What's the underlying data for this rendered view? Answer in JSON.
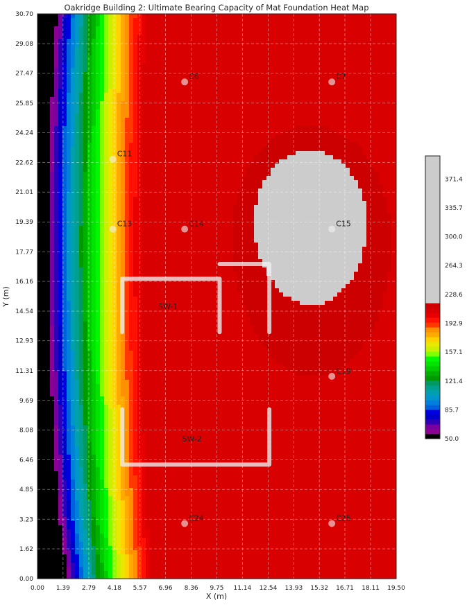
{
  "chart_data": {
    "type": "heatmap",
    "title": "Oakridge Building 2: Ultimate Bearing Capacity of Mat Foundation Heat Map",
    "xlabel": "X (m)",
    "ylabel": "Y (m)",
    "xlim": [
      0,
      19.5
    ],
    "ylim": [
      0,
      30.7
    ],
    "xticks": [
      "0.00",
      "1.39",
      "2.79",
      "4.18",
      "5.57",
      "6.96",
      "8.36",
      "9.75",
      "11.14",
      "12.54",
      "13.93",
      "15.32",
      "16.71",
      "18.11",
      "19.50"
    ],
    "yticks": [
      "0.00",
      "1.62",
      "3.23",
      "4.85",
      "6.46",
      "8.08",
      "9.69",
      "11.31",
      "12.93",
      "14.54",
      "16.16",
      "17.77",
      "19.39",
      "21.01",
      "22.62",
      "24.24",
      "25.85",
      "27.47",
      "29.08",
      "30.70"
    ],
    "grid": true,
    "colorbar": {
      "ticks": [
        "50.0",
        "85.7",
        "121.4",
        "157.1",
        "192.9",
        "228.6",
        "264.3",
        "300.0",
        "335.7",
        "371.4"
      ],
      "range": [
        50.0,
        400.0
      ],
      "levels": [
        {
          "from": 50.0,
          "to": 56.0,
          "color": "#000000"
        },
        {
          "from": 56.0,
          "to": 62.0,
          "color": "#8c0094"
        },
        {
          "from": 62.0,
          "to": 68.0,
          "color": "#7800a0"
        },
        {
          "from": 68.0,
          "to": 74.0,
          "color": "#3000b8"
        },
        {
          "from": 74.0,
          "to": 80.0,
          "color": "#0000c8"
        },
        {
          "from": 80.0,
          "to": 86.0,
          "color": "#0000e0"
        },
        {
          "from": 86.0,
          "to": 92.0,
          "color": "#0060dd"
        },
        {
          "from": 92.0,
          "to": 98.0,
          "color": "#0080dd"
        },
        {
          "from": 98.0,
          "to": 104.0,
          "color": "#0095cc"
        },
        {
          "from": 104.0,
          "to": 110.0,
          "color": "#00a0b0"
        },
        {
          "from": 110.0,
          "to": 116.0,
          "color": "#00a090"
        },
        {
          "from": 116.0,
          "to": 122.0,
          "color": "#009a60"
        },
        {
          "from": 122.0,
          "to": 128.0,
          "color": "#009900"
        },
        {
          "from": 128.0,
          "to": 134.0,
          "color": "#00b000"
        },
        {
          "from": 134.0,
          "to": 140.0,
          "color": "#00cc00"
        },
        {
          "from": 140.0,
          "to": 146.0,
          "color": "#00e400"
        },
        {
          "from": 146.0,
          "to": 152.0,
          "color": "#00f800"
        },
        {
          "from": 152.0,
          "to": 158.0,
          "color": "#80ff00"
        },
        {
          "from": 158.0,
          "to": 164.0,
          "color": "#c8f000"
        },
        {
          "from": 164.0,
          "to": 170.0,
          "color": "#e8e800"
        },
        {
          "from": 170.0,
          "to": 176.0,
          "color": "#ffd200"
        },
        {
          "from": 176.0,
          "to": 182.0,
          "color": "#ffaa00"
        },
        {
          "from": 182.0,
          "to": 188.0,
          "color": "#ff9000"
        },
        {
          "from": 188.0,
          "to": 194.0,
          "color": "#ff3800"
        },
        {
          "from": 194.0,
          "to": 200.0,
          "color": "#ff1000"
        },
        {
          "from": 200.0,
          "to": 206.0,
          "color": "#e80000"
        },
        {
          "from": 206.0,
          "to": 212.0,
          "color": "#d80000"
        },
        {
          "from": 212.0,
          "to": 218.0,
          "color": "#cc0000"
        },
        {
          "from": 218.0,
          "to": 400.0,
          "color": "#cccccc"
        }
      ]
    },
    "points": [
      {
        "label": "C6",
        "x": 8.0,
        "y": 27.0
      },
      {
        "label": "C7",
        "x": 16.0,
        "y": 27.0
      },
      {
        "label": "C11",
        "x": 4.1,
        "y": 22.8
      },
      {
        "label": "C13",
        "x": 4.1,
        "y": 19.0
      },
      {
        "label": "C14",
        "x": 8.0,
        "y": 19.0
      },
      {
        "label": "C15",
        "x": 16.0,
        "y": 19.0
      },
      {
        "label": "C19",
        "x": 16.0,
        "y": 11.0
      },
      {
        "label": "C24",
        "x": 8.0,
        "y": 3.0
      },
      {
        "label": "C25",
        "x": 16.0,
        "y": 3.0
      }
    ],
    "walls": [
      {
        "label": "SW-1",
        "label_x": 7.1,
        "label_y": 14.8,
        "segments": [
          [
            [
              4.6,
              13.4
            ],
            [
              4.6,
              16.3
            ],
            [
              9.9,
              16.3
            ],
            [
              9.9,
              13.4
            ]
          ],
          [
            [
              9.9,
              17.1
            ],
            [
              12.6,
              17.1
            ],
            [
              12.6,
              13.4
            ]
          ]
        ]
      },
      {
        "label": "SW-2",
        "label_x": 8.4,
        "label_y": 7.6,
        "segments": [
          [
            [
              4.6,
              9.2
            ],
            [
              4.6,
              6.2
            ],
            [
              12.6,
              6.2
            ],
            [
              12.6,
              9.2
            ]
          ]
        ]
      }
    ]
  }
}
